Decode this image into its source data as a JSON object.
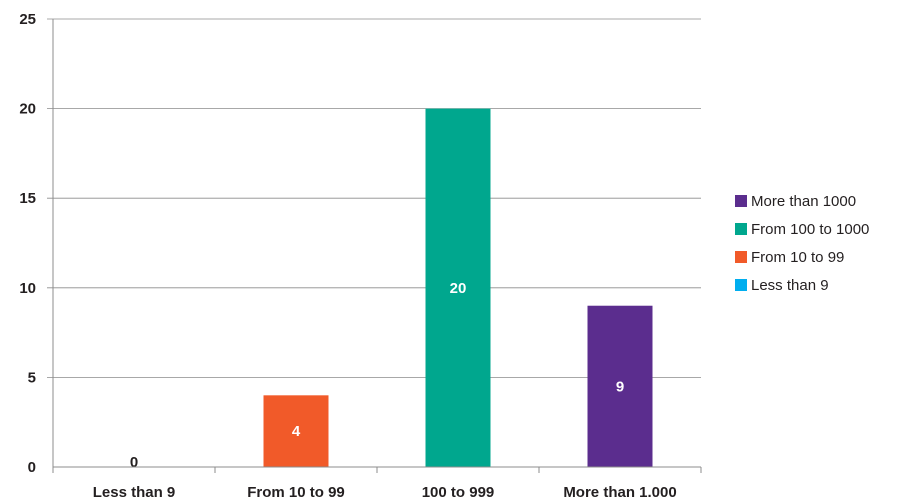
{
  "chart_data": {
    "type": "bar",
    "categories": [
      "Less than 9",
      "From 10 to 99",
      "100 to 999",
      "More than 1.000"
    ],
    "values": [
      0,
      4,
      20,
      9
    ],
    "bar_colors": [
      "#00aeef",
      "#f15a29",
      "#00a78e",
      "#5b2d8e"
    ],
    "data_labels": [
      "0",
      "4",
      "20",
      "9"
    ],
    "ylim": [
      0,
      25
    ],
    "yticks": [
      0,
      5,
      10,
      15,
      20,
      25
    ],
    "grid": true,
    "legend_position": "right",
    "legend": [
      {
        "label": "More than 1000",
        "color": "#5b2d8e"
      },
      {
        "label": "From 100 to 1000",
        "color": "#00a78e"
      },
      {
        "label": "From 10 to 99",
        "color": "#f15a29"
      },
      {
        "label": "Less than 9",
        "color": "#00aeef"
      }
    ]
  }
}
